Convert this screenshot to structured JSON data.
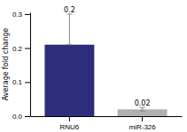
{
  "chart_data": {
    "type": "bar",
    "categories": [
      "RNU6",
      "miR-326"
    ],
    "values": [
      0.21,
      0.02
    ],
    "errors_up": [
      0.09,
      0.005
    ],
    "errors_down": [
      0.0,
      0.005
    ],
    "colors": [
      "#2e2d7c",
      "#b0b0b0"
    ],
    "data_labels": true,
    "value_labels": [
      "0.2",
      "0.02"
    ],
    "ylabel": "Average fold change",
    "ylim": [
      0,
      0.305
    ],
    "yticks": [
      {
        "value": 0.0,
        "label": "0.0"
      },
      0.1,
      0.2,
      0.3
    ],
    "grid": false
  }
}
